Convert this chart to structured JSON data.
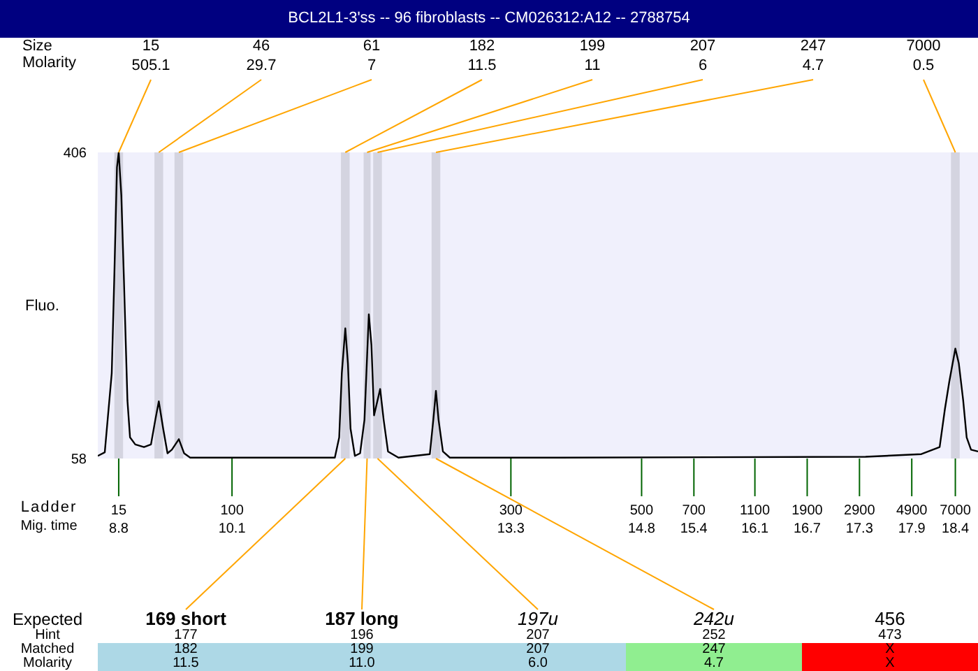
{
  "chart_data": {
    "type": "line",
    "title": "BCL2L1-3'ss -- 96 fibroblasts -- CM026312:A12 -- 2788754",
    "xlabel": "Mig. time",
    "ylabel": "Fluo.",
    "xlim": [
      8.56,
      18.66
    ],
    "xticks": [
      8.8,
      10.1,
      13.3,
      14.8,
      15.4,
      16.1,
      16.7,
      17.3,
      17.9,
      18.4
    ],
    "ylim": [
      58,
      406
    ],
    "yticks": [
      58,
      406
    ],
    "x": [
      8.56,
      8.64,
      8.72,
      8.75,
      8.78,
      8.8,
      8.83,
      8.86,
      8.9,
      8.93,
      8.99,
      9.09,
      9.17,
      9.22,
      9.26,
      9.31,
      9.36,
      9.41,
      9.49,
      9.55,
      9.62,
      11.28,
      11.33,
      11.36,
      11.4,
      11.43,
      11.46,
      11.51,
      11.57,
      11.62,
      11.67,
      11.7,
      11.73,
      11.8,
      11.84,
      11.89,
      12.01,
      12.37,
      12.41,
      12.44,
      12.47,
      12.52,
      12.6,
      13.85,
      17.37,
      18.01,
      18.22,
      18.28,
      18.33,
      18.4,
      18.44,
      18.49,
      18.53,
      18.58,
      18.66
    ],
    "series": [
      {
        "color": "#000000",
        "values": [
          61,
          65,
          155,
          267,
          389,
          406,
          357,
          261,
          124,
          82,
          74,
          71,
          74,
          102,
          123,
          92,
          64,
          68,
          80,
          64,
          59,
          59,
          82,
          155,
          206,
          166,
          92,
          61,
          64,
          102,
          222,
          187,
          107,
          137,
          102,
          66,
          59,
          63,
          102,
          135,
          102,
          66,
          59,
          59,
          60,
          63,
          71,
          114,
          145,
          183,
          166,
          124,
          82,
          68,
          66
        ]
      }
    ],
    "bands": [
      {
        "axis": "x",
        "from": 8.75,
        "to": 8.85,
        "color": "#d4d4e0"
      },
      {
        "axis": "x",
        "from": 9.21,
        "to": 9.31,
        "color": "#d4d4e0"
      },
      {
        "axis": "x",
        "from": 9.44,
        "to": 9.54,
        "color": "#d4d4e0"
      },
      {
        "axis": "x",
        "from": 11.35,
        "to": 11.45,
        "color": "#d4d4e0"
      },
      {
        "axis": "x",
        "from": 11.61,
        "to": 11.69,
        "color": "#d4d4e0"
      },
      {
        "axis": "x",
        "from": 11.72,
        "to": 11.82,
        "color": "#d4d4e0"
      },
      {
        "axis": "x",
        "from": 12.39,
        "to": 12.49,
        "color": "#d4d4e0"
      },
      {
        "axis": "x",
        "from": 18.35,
        "to": 18.45,
        "color": "#d4d4e0"
      }
    ],
    "annotations": [
      "Ladder",
      "15",
      "100",
      "300",
      "500",
      "700",
      "1100",
      "1900",
      "2900",
      "4900",
      "7000",
      "Size",
      "Molarity",
      "15",
      "505.1",
      "46",
      "29.7",
      "61",
      "7",
      "182",
      "11.5",
      "199",
      "11",
      "207",
      "6",
      "247",
      "4.7",
      "7000",
      "0.5",
      "Expected",
      "Hint",
      "Matched",
      "Molarity",
      "169 short",
      "187 long",
      "197u",
      "242u",
      "456",
      "177",
      "196",
      "207",
      "252",
      "473",
      "182",
      "199",
      "207",
      "247",
      "X",
      "11.5",
      "11.0",
      "6.0",
      "4.7",
      "X"
    ]
  }
}
